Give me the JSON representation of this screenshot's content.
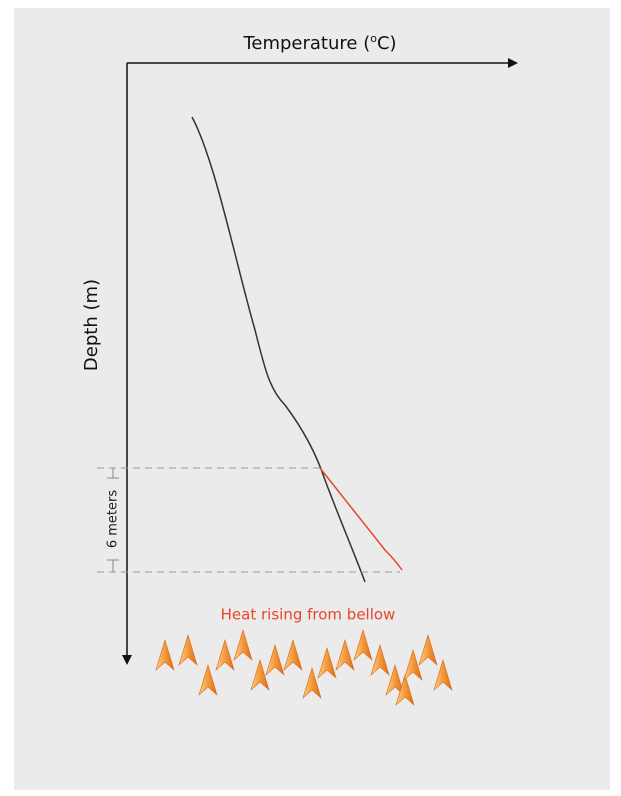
{
  "x_axis": {
    "label_prefix": "Temperature (",
    "label_sup": "o",
    "label_suffix": "C)"
  },
  "y_axis": {
    "label": "Depth (m)"
  },
  "bracket": {
    "label": "6 meters"
  },
  "annotation": {
    "label": "Heat rising from bellow"
  }
}
